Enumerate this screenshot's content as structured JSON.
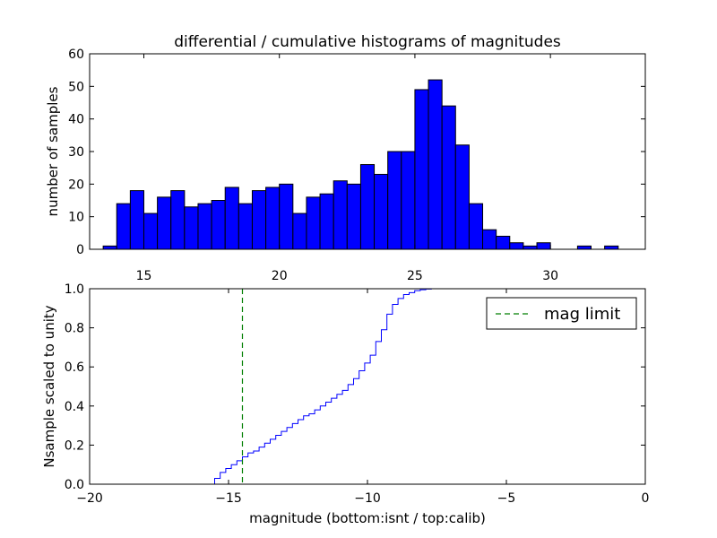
{
  "chart_data": [
    {
      "type": "bar",
      "title": "differential / cumulative histograms of magnitudes",
      "xlabel": "",
      "ylabel": "number of samples",
      "xlim": [
        13.0,
        33.5
      ],
      "ylim": [
        0,
        60
      ],
      "xticks": [
        15,
        20,
        25,
        30
      ],
      "yticks": [
        0,
        10,
        20,
        30,
        40,
        50,
        60
      ],
      "bin_width": 0.5,
      "bin_starts": [
        13.5,
        14.0,
        14.5,
        15.0,
        15.5,
        16.0,
        16.5,
        17.0,
        17.5,
        18.0,
        18.5,
        19.0,
        19.5,
        20.0,
        20.5,
        21.0,
        21.5,
        22.0,
        22.5,
        23.0,
        23.5,
        24.0,
        24.5,
        25.0,
        25.5,
        26.0,
        26.5,
        27.0,
        27.5,
        28.0,
        28.5,
        29.0,
        29.5,
        30.0,
        30.5,
        31.0,
        31.5,
        32.0
      ],
      "values": [
        1,
        14,
        18,
        11,
        16,
        18,
        13,
        14,
        15,
        19,
        14,
        18,
        19,
        20,
        11,
        16,
        17,
        21,
        20,
        26,
        23,
        30,
        30,
        49,
        52,
        44,
        32,
        14,
        6,
        4,
        2,
        1,
        2,
        0,
        0,
        1,
        0,
        1
      ]
    },
    {
      "type": "line",
      "xlabel": "magnitude (bottom:isnt / top:calib)",
      "ylabel": "Nsample scaled to unity",
      "xlim": [
        -20,
        0
      ],
      "ylim": [
        0.0,
        1.0
      ],
      "xticks": [
        -20,
        -15,
        -10,
        -5,
        0
      ],
      "yticks": [
        0.0,
        0.2,
        0.4,
        0.6,
        0.8,
        1.0
      ],
      "xtick_labels": [
        "−20",
        "−15",
        "−10",
        "−5",
        "0"
      ],
      "ytick_labels": [
        "0.0",
        "0.2",
        "0.4",
        "0.6",
        "0.8",
        "1.0"
      ],
      "series": [
        {
          "name": "cumulative",
          "style": "step",
          "color": "#0000ff",
          "x": [
            -20.0,
            -15.7,
            -15.5,
            -15.3,
            -15.1,
            -14.9,
            -14.7,
            -14.5,
            -14.3,
            -14.1,
            -13.9,
            -13.7,
            -13.5,
            -13.3,
            -13.1,
            -12.9,
            -12.7,
            -12.5,
            -12.3,
            -12.1,
            -11.9,
            -11.7,
            -11.5,
            -11.3,
            -11.1,
            -10.9,
            -10.7,
            -10.5,
            -10.3,
            -10.1,
            -9.9,
            -9.7,
            -9.5,
            -9.3,
            -9.1,
            -8.9,
            -8.7,
            -8.5,
            -8.3,
            -8.1,
            -7.9,
            -7.7,
            -7.5,
            0.0
          ],
          "y": [
            0.0,
            0.0,
            0.03,
            0.06,
            0.08,
            0.1,
            0.12,
            0.14,
            0.16,
            0.17,
            0.19,
            0.21,
            0.23,
            0.25,
            0.27,
            0.29,
            0.31,
            0.33,
            0.35,
            0.36,
            0.38,
            0.4,
            0.42,
            0.44,
            0.46,
            0.48,
            0.51,
            0.54,
            0.58,
            0.62,
            0.66,
            0.73,
            0.79,
            0.87,
            0.92,
            0.95,
            0.97,
            0.98,
            0.99,
            0.995,
            0.998,
            1.0,
            1.0,
            1.0
          ]
        },
        {
          "name": "mag limit",
          "style": "dashed-vertical",
          "color": "#007f00",
          "x": -14.5
        }
      ],
      "legend": {
        "label": "mag limit",
        "placement": "top-right"
      }
    }
  ]
}
